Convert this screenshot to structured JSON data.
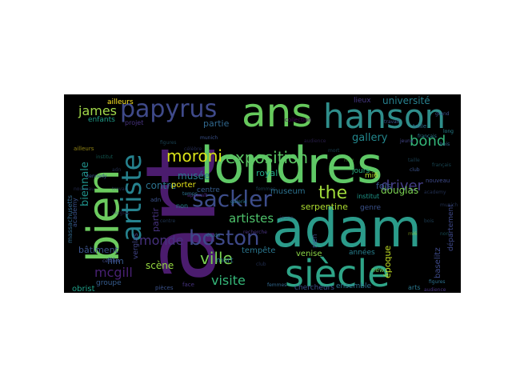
{
  "words": [
    {
      "text": "art",
      "color": "#4b1c6e"
    },
    {
      "text": "londres",
      "color": "#5fc866"
    },
    {
      "text": "adam",
      "color": "#2b9b8a"
    },
    {
      "text": "bien",
      "color": "#6ccb5f"
    },
    {
      "text": "ans",
      "color": "#66c95c"
    },
    {
      "text": "hanson",
      "color": "#2f8e8b"
    },
    {
      "text": "siècle",
      "color": "#2ea487"
    },
    {
      "text": "papyrus",
      "color": "#3f4a8a"
    },
    {
      "text": "artiste",
      "color": "#26828e"
    },
    {
      "text": "sackler",
      "color": "#3d4d8a"
    },
    {
      "text": "boston",
      "color": "#3e4989"
    },
    {
      "text": "exposition",
      "color": "#5bc563"
    },
    {
      "text": "moroni",
      "color": "#d8e219"
    },
    {
      "text": "james",
      "color": "#a2d94a"
    },
    {
      "text": "bond",
      "color": "#34b679"
    },
    {
      "text": "the",
      "color": "#9fda3a"
    },
    {
      "text": "driver",
      "color": "#433d84"
    },
    {
      "text": "ville",
      "color": "#7ad151"
    },
    {
      "text": "visite",
      "color": "#35b779"
    },
    {
      "text": "monde",
      "color": "#46317e"
    },
    {
      "text": "artistes",
      "color": "#4ec36b"
    },
    {
      "text": "mcgill",
      "color": "#482173"
    },
    {
      "text": "biennale",
      "color": "#20928c"
    },
    {
      "text": "université",
      "color": "#27808e"
    },
    {
      "text": "gallery",
      "color": "#23888e"
    },
    {
      "text": "douglas",
      "color": "#7ad151"
    },
    {
      "text": "serpentine",
      "color": "#addc30"
    },
    {
      "text": "contre",
      "color": "#2c728e"
    },
    {
      "text": "musée",
      "color": "#2a788e"
    },
    {
      "text": "partir",
      "color": "#46327e"
    },
    {
      "text": "partie",
      "color": "#31688e"
    },
    {
      "text": "fois",
      "color": "#38598c"
    },
    {
      "text": "bâtiment",
      "color": "#3b528b"
    },
    {
      "text": "film",
      "color": "#375a8c"
    },
    {
      "text": "scène",
      "color": "#95d840"
    },
    {
      "text": "royal",
      "color": "#22a785"
    },
    {
      "text": "museum",
      "color": "#2c718e"
    },
    {
      "text": "venise",
      "color": "#8bd646"
    },
    {
      "text": "chercheurs",
      "color": "#3b528b"
    },
    {
      "text": "tempête",
      "color": "#2a768e"
    },
    {
      "text": "ensemble",
      "color": "#2d708e"
    },
    {
      "text": "époque",
      "color": "#c2df23"
    },
    {
      "text": "baselitz",
      "color": "#3e4a89"
    },
    {
      "text": "obrist",
      "color": "#1fa088"
    },
    {
      "text": "groupe",
      "color": "#365c8d"
    },
    {
      "text": "années",
      "color": "#277f8e"
    },
    {
      "text": "genre",
      "color": "#3b528b"
    },
    {
      "text": "jours",
      "color": "#29af7f"
    },
    {
      "text": "lieux",
      "color": "#453781"
    },
    {
      "text": "enfants",
      "color": "#1f9e89"
    },
    {
      "text": "ailleurs",
      "color": "#fde725"
    },
    {
      "text": "porter",
      "color": "#e5e419"
    },
    {
      "text": "centre",
      "color": "#365c8d"
    },
    {
      "text": "mort",
      "color": "#2d718e"
    },
    {
      "text": "rien",
      "color": "#3b528b"
    },
    {
      "text": "département",
      "color": "#3e4989"
    },
    {
      "text": "mi6",
      "color": "#b5de2b"
    },
    {
      "text": "institut",
      "color": "#1f988b"
    },
    {
      "text": "arts",
      "color": "#2a788e"
    },
    {
      "text": "verglas",
      "color": "#414487"
    },
    {
      "text": "new",
      "color": "#6ece58"
    },
    {
      "text": "projet",
      "color": "#46327e"
    },
    {
      "text": "collection",
      "color": "#440154"
    },
    {
      "text": "non",
      "color": "#27808e"
    },
    {
      "text": "adn",
      "color": "#3b528b"
    },
    {
      "text": "massachusetts",
      "color": "#31688e"
    },
    {
      "text": "nouveau",
      "color": "#3e4a89"
    },
    {
      "text": "taille",
      "color": "#2e6f8e"
    },
    {
      "text": "face",
      "color": "#46327e"
    },
    {
      "text": "pièces",
      "color": "#3b528b"
    },
    {
      "text": "femmes",
      "color": "#31688e"
    },
    {
      "text": "figures",
      "color": "#2c728e"
    },
    {
      "text": "grand",
      "color": "#3b528b"
    },
    {
      "text": "travail",
      "color": "#3b528b"
    },
    {
      "text": "français",
      "color": "#2a788e"
    },
    {
      "text": "long",
      "color": "#26828e"
    },
    {
      "text": "étude",
      "color": "#2c728e"
    },
    {
      "text": "jeune",
      "color": "#414487"
    },
    {
      "text": "célèbre",
      "color": "#3e4989"
    },
    {
      "text": "recherche",
      "color": "#46327e"
    },
    {
      "text": "academy",
      "color": "#3b528b"
    },
    {
      "text": "munich",
      "color": "#3b528b"
    },
    {
      "text": "apparaît",
      "color": "#482576"
    },
    {
      "text": "galerie",
      "color": "#2a788e"
    },
    {
      "text": "club",
      "color": "#3b528b"
    },
    {
      "text": "audience",
      "color": "#46327e"
    },
    {
      "text": "temps",
      "color": "#2c728e"
    },
    {
      "text": "kennedy",
      "color": "#3b528b"
    },
    {
      "text": "bois",
      "color": "#31688e"
    }
  ]
}
